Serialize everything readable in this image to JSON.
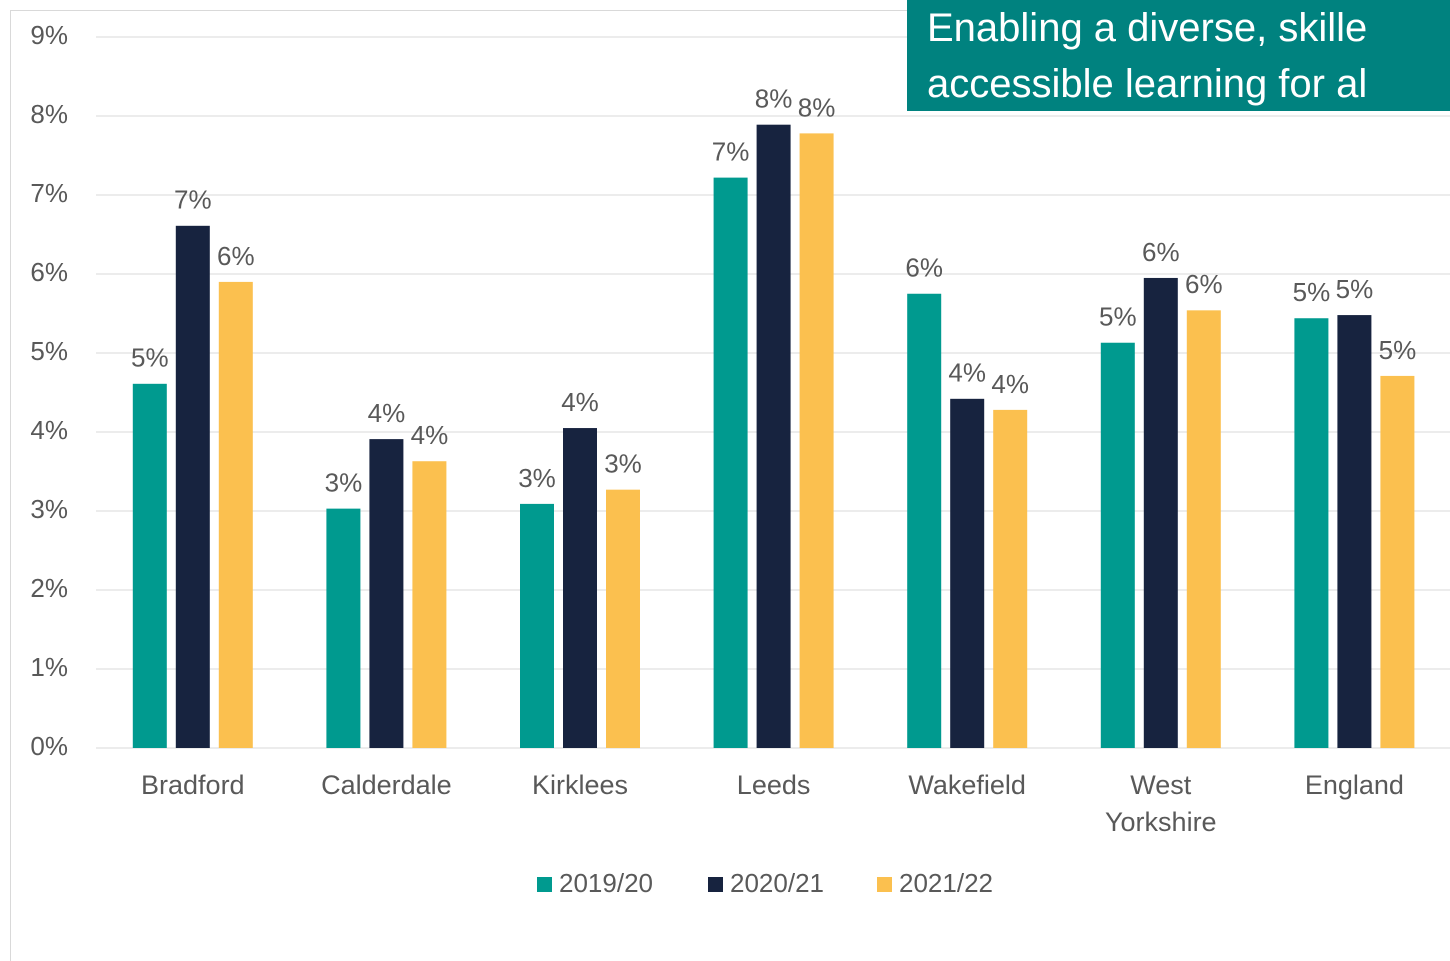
{
  "banner": {
    "lines": [
      "Enabling a diverse, skille",
      "accessible learning for al"
    ]
  },
  "chart_data": {
    "type": "bar",
    "categories": [
      "Bradford",
      "Calderdale",
      "Kirklees",
      "Leeds",
      "Wakefield",
      "West Yorkshire",
      "England"
    ],
    "series": [
      {
        "name": "2019/20",
        "color": "#009a8f",
        "values": [
          4.61,
          3.03,
          3.09,
          7.22,
          5.75,
          5.13,
          5.44
        ],
        "value_labels": [
          "5%",
          "3%",
          "3%",
          "7%",
          "6%",
          "5%",
          "5%"
        ]
      },
      {
        "name": "2020/21",
        "color": "#17233f",
        "values": [
          6.61,
          3.91,
          4.05,
          7.89,
          4.42,
          5.95,
          5.48
        ],
        "value_labels": [
          "7%",
          "4%",
          "4%",
          "8%",
          "4%",
          "6%",
          "5%"
        ]
      },
      {
        "name": "2021/22",
        "color": "#fbc04f",
        "values": [
          5.9,
          3.63,
          3.27,
          7.78,
          4.28,
          5.54,
          4.71
        ],
        "value_labels": [
          "6%",
          "4%",
          "3%",
          "8%",
          "4%",
          "6%",
          "5%"
        ]
      }
    ],
    "ylim": [
      0,
      9
    ],
    "yticks": [
      {
        "value": 0,
        "label": "0%"
      },
      {
        "value": 1,
        "label": "1%"
      },
      {
        "value": 2,
        "label": "2%"
      },
      {
        "value": 3,
        "label": "3%"
      },
      {
        "value": 4,
        "label": "4%"
      },
      {
        "value": 5,
        "label": "5%"
      },
      {
        "value": 6,
        "label": "6%"
      },
      {
        "value": 7,
        "label": "7%"
      },
      {
        "value": 8,
        "label": "8%"
      },
      {
        "value": 9,
        "label": "9%"
      }
    ],
    "grid": true,
    "legend": "bottom"
  }
}
